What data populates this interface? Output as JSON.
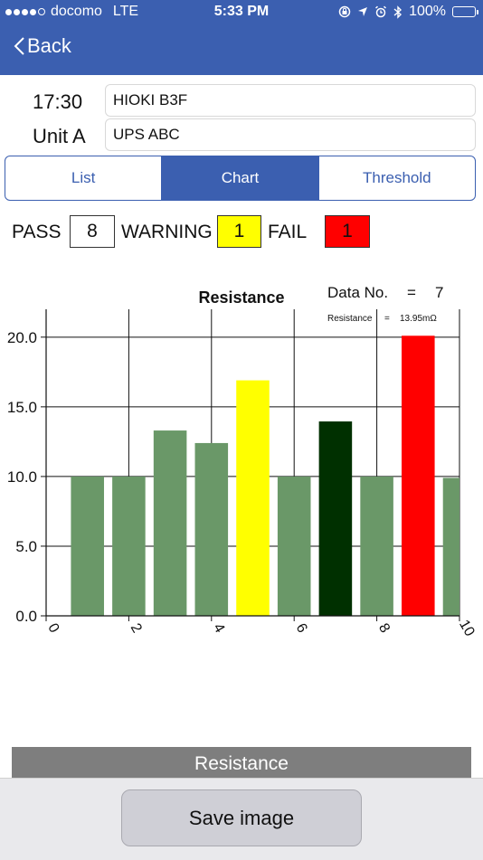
{
  "status_bar": {
    "carrier": "docomo",
    "network": "LTE",
    "time": "5:33 PM",
    "battery": "100%"
  },
  "nav": {
    "back_label": "Back"
  },
  "header": {
    "time": "17:30",
    "device": "HIOKI B3F",
    "unit": "Unit A",
    "name": "UPS ABC"
  },
  "tabs": [
    {
      "label": "List",
      "active": false
    },
    {
      "label": "Chart",
      "active": true
    },
    {
      "label": "Threshold",
      "active": false
    }
  ],
  "counts": {
    "pass_label": "PASS",
    "pass_value": "8",
    "warning_label": "WARNING",
    "warning_value": "1",
    "fail_label": "FAIL",
    "fail_value": "1"
  },
  "colors": {
    "accent": "#3b5fb0",
    "pass": "#6a9868",
    "warning": "#ffff00",
    "fail": "#ff0000",
    "selected": "#003000"
  },
  "chart_data": {
    "type": "bar",
    "title": "Resistance",
    "x": [
      1,
      2,
      3,
      4,
      5,
      6,
      7,
      8,
      9,
      10
    ],
    "values": [
      10.0,
      10.0,
      13.3,
      12.4,
      16.9,
      10.0,
      13.95,
      10.0,
      20.1,
      9.9
    ],
    "status": [
      "pass",
      "pass",
      "pass",
      "pass",
      "warning",
      "pass",
      "selected",
      "pass",
      "fail",
      "pass"
    ],
    "xlim": [
      0,
      10
    ],
    "ylim": [
      0,
      22
    ],
    "x_ticks": [
      "0",
      "2",
      "4",
      "6",
      "8",
      "10"
    ],
    "y_ticks": [
      "0.0",
      "5.0",
      "10.0",
      "15.0",
      "20.0"
    ],
    "grid": true,
    "info": {
      "data_no_label": "Data No.",
      "data_no_eq": "=",
      "data_no_value": "7",
      "res_label": "Resistance",
      "res_eq": "=",
      "res_value": "13.95mΩ"
    }
  },
  "footer": {
    "resistance_label": "Resistance",
    "save_label": "Save image"
  }
}
